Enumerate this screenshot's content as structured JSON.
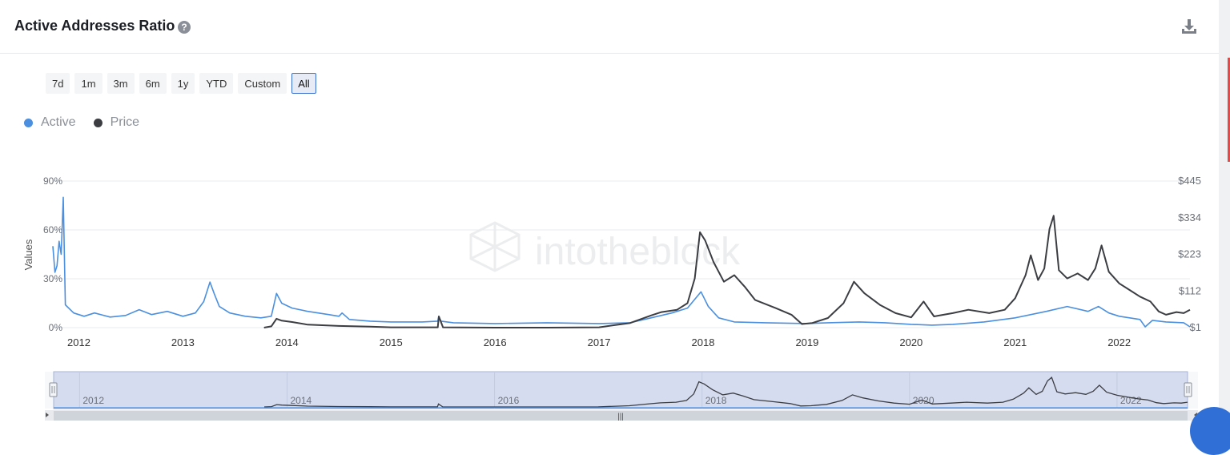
{
  "header": {
    "title": "Active Addresses Ratio",
    "help_icon": "?"
  },
  "range_buttons": [
    "7d",
    "1m",
    "3m",
    "6m",
    "1y",
    "YTD",
    "Custom",
    "All"
  ],
  "active_range": "All",
  "watermark": "intotheblock",
  "colors": {
    "active": "#4a8fe0",
    "price": "#3b3d42",
    "navigator_fill": "#d5dcef"
  },
  "chart_data": {
    "type": "line",
    "legend": {
      "position": "top-left"
    },
    "ylabel": "Values",
    "y_left_ticks": [
      "0%",
      "30%",
      "60%",
      "90%"
    ],
    "y_right_ticks": [
      "$1",
      "$112",
      "$223",
      "$334",
      "$445"
    ],
    "x_ticks": [
      "2012",
      "2013",
      "2014",
      "2015",
      "2016",
      "2017",
      "2018",
      "2019",
      "2020",
      "2021",
      "2022"
    ],
    "navigator_ticks": [
      "2012",
      "2014",
      "2016",
      "2018",
      "2020",
      "2022"
    ],
    "series": [
      {
        "name": "Active",
        "axis": "left",
        "points": [
          [
            2011.75,
            50
          ],
          [
            2011.77,
            34
          ],
          [
            2011.79,
            38
          ],
          [
            2011.81,
            53
          ],
          [
            2011.83,
            45
          ],
          [
            2011.85,
            80
          ],
          [
            2011.87,
            14
          ],
          [
            2011.95,
            9
          ],
          [
            2012.05,
            7
          ],
          [
            2012.15,
            9
          ],
          [
            2012.3,
            6.5
          ],
          [
            2012.45,
            7.5
          ],
          [
            2012.58,
            11
          ],
          [
            2012.7,
            8
          ],
          [
            2012.85,
            10
          ],
          [
            2013.0,
            7
          ],
          [
            2013.12,
            9
          ],
          [
            2013.2,
            16
          ],
          [
            2013.26,
            28
          ],
          [
            2013.3,
            21
          ],
          [
            2013.35,
            13
          ],
          [
            2013.45,
            9
          ],
          [
            2013.6,
            7
          ],
          [
            2013.75,
            6
          ],
          [
            2013.85,
            7
          ],
          [
            2013.9,
            21
          ],
          [
            2013.95,
            15
          ],
          [
            2014.05,
            12
          ],
          [
            2014.2,
            10
          ],
          [
            2014.4,
            8
          ],
          [
            2014.5,
            7
          ],
          [
            2014.53,
            9
          ],
          [
            2014.6,
            5
          ],
          [
            2014.8,
            4
          ],
          [
            2015.0,
            3.5
          ],
          [
            2015.3,
            3.5
          ],
          [
            2015.45,
            4
          ],
          [
            2015.46,
            7
          ],
          [
            2015.48,
            4
          ],
          [
            2015.6,
            3
          ],
          [
            2016.0,
            2.5
          ],
          [
            2016.5,
            3
          ],
          [
            2017.0,
            2.5
          ],
          [
            2017.3,
            3
          ],
          [
            2017.5,
            6
          ],
          [
            2017.7,
            9
          ],
          [
            2017.85,
            12
          ],
          [
            2017.98,
            22
          ],
          [
            2018.05,
            13
          ],
          [
            2018.15,
            6
          ],
          [
            2018.3,
            3.5
          ],
          [
            2018.6,
            3
          ],
          [
            2019.0,
            2.5
          ],
          [
            2019.2,
            3
          ],
          [
            2019.5,
            3.5
          ],
          [
            2019.75,
            3
          ],
          [
            2020.0,
            2
          ],
          [
            2020.2,
            1.5
          ],
          [
            2020.4,
            2
          ],
          [
            2020.7,
            3.5
          ],
          [
            2021.0,
            6
          ],
          [
            2021.3,
            10
          ],
          [
            2021.5,
            13
          ],
          [
            2021.7,
            10
          ],
          [
            2021.8,
            13
          ],
          [
            2021.9,
            9
          ],
          [
            2022.0,
            7
          ],
          [
            2022.2,
            5
          ],
          [
            2022.25,
            0.5
          ],
          [
            2022.32,
            4.5
          ],
          [
            2022.45,
            3.5
          ],
          [
            2022.62,
            3
          ],
          [
            2022.68,
            0.5
          ]
        ]
      },
      {
        "name": "Price",
        "axis": "right",
        "points": [
          [
            2013.78,
            1
          ],
          [
            2013.85,
            5
          ],
          [
            2013.9,
            28
          ],
          [
            2013.95,
            22
          ],
          [
            2014.05,
            18
          ],
          [
            2014.2,
            10
          ],
          [
            2014.5,
            6
          ],
          [
            2014.8,
            4
          ],
          [
            2015.0,
            2
          ],
          [
            2015.45,
            2
          ],
          [
            2015.46,
            35
          ],
          [
            2015.5,
            2
          ],
          [
            2016.0,
            1
          ],
          [
            2016.5,
            1
          ],
          [
            2017.0,
            2
          ],
          [
            2017.3,
            15
          ],
          [
            2017.5,
            38
          ],
          [
            2017.6,
            48
          ],
          [
            2017.75,
            55
          ],
          [
            2017.85,
            75
          ],
          [
            2017.92,
            150
          ],
          [
            2017.97,
            290
          ],
          [
            2018.02,
            265
          ],
          [
            2018.1,
            200
          ],
          [
            2018.2,
            140
          ],
          [
            2018.3,
            160
          ],
          [
            2018.4,
            125
          ],
          [
            2018.5,
            85
          ],
          [
            2018.7,
            60
          ],
          [
            2018.85,
            40
          ],
          [
            2018.95,
            12
          ],
          [
            2019.05,
            15
          ],
          [
            2019.2,
            30
          ],
          [
            2019.35,
            75
          ],
          [
            2019.45,
            140
          ],
          [
            2019.55,
            105
          ],
          [
            2019.7,
            70
          ],
          [
            2019.85,
            45
          ],
          [
            2020.0,
            32
          ],
          [
            2020.12,
            80
          ],
          [
            2020.22,
            35
          ],
          [
            2020.4,
            45
          ],
          [
            2020.55,
            55
          ],
          [
            2020.75,
            45
          ],
          [
            2020.9,
            55
          ],
          [
            2021.0,
            90
          ],
          [
            2021.1,
            160
          ],
          [
            2021.15,
            220
          ],
          [
            2021.22,
            145
          ],
          [
            2021.28,
            180
          ],
          [
            2021.33,
            300
          ],
          [
            2021.37,
            340
          ],
          [
            2021.42,
            175
          ],
          [
            2021.5,
            150
          ],
          [
            2021.6,
            165
          ],
          [
            2021.7,
            145
          ],
          [
            2021.77,
            180
          ],
          [
            2021.83,
            250
          ],
          [
            2021.9,
            170
          ],
          [
            2022.0,
            135
          ],
          [
            2022.1,
            115
          ],
          [
            2022.2,
            95
          ],
          [
            2022.3,
            80
          ],
          [
            2022.38,
            50
          ],
          [
            2022.45,
            40
          ],
          [
            2022.55,
            48
          ],
          [
            2022.62,
            45
          ],
          [
            2022.68,
            55
          ]
        ]
      }
    ]
  }
}
